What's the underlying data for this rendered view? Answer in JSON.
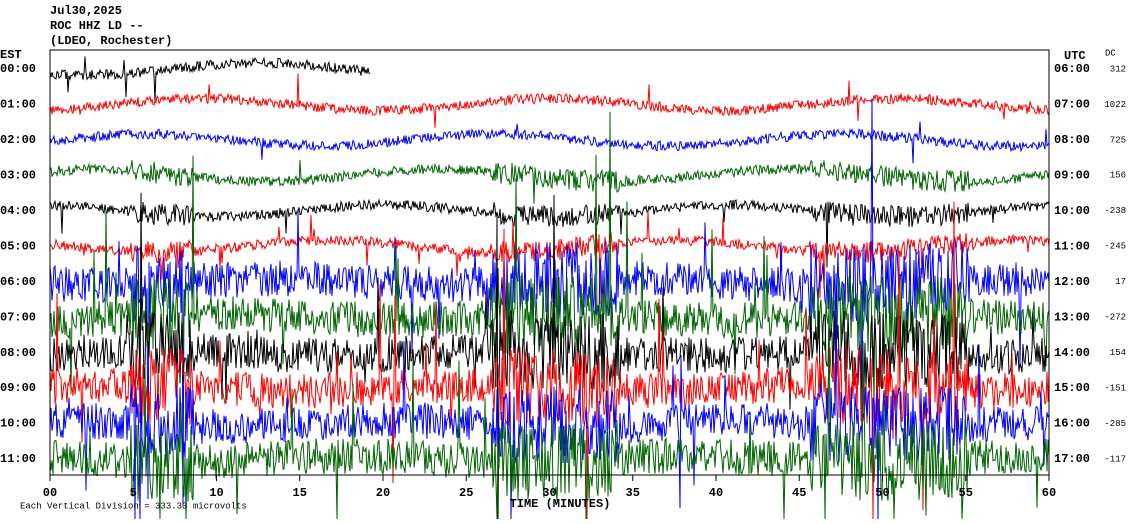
{
  "chart_data": {
    "type": "helicorder",
    "title_lines": [
      "Jul30,2025",
      "ROC HHZ LD --",
      "(LDEO, Rochester)"
    ],
    "left_axis_label": "EST",
    "right_axis_label": "UTC",
    "dc_label": "DC",
    "x_label": "TIME (MINUTES)",
    "footer": "Each Vertical Division = 333.33 microvolts",
    "xlim": [
      0,
      60
    ],
    "xticks": [
      {
        "value": 0,
        "label": "00"
      },
      5,
      10,
      15,
      20,
      25,
      30,
      35,
      40,
      45,
      50,
      55,
      60
    ],
    "rows": [
      {
        "est": "00:00",
        "utc": "06:00",
        "dc": "312",
        "color": "#000000"
      },
      {
        "est": "01:00",
        "utc": "07:00",
        "dc": "1022",
        "color": "#ff0000"
      },
      {
        "est": "02:00",
        "utc": "08:00",
        "dc": "725",
        "color": "#0000ff"
      },
      {
        "est": "03:00",
        "utc": "09:00",
        "dc": "156",
        "color": "#006400"
      },
      {
        "est": "04:00",
        "utc": "10:00",
        "dc": "-238",
        "color": "#000000"
      },
      {
        "est": "05:00",
        "utc": "11:00",
        "dc": "-245",
        "color": "#ff0000"
      },
      {
        "est": "06:00",
        "utc": "12:00",
        "dc": "17",
        "color": "#0000ff"
      },
      {
        "est": "07:00",
        "utc": "13:00",
        "dc": "-272",
        "color": "#006400"
      },
      {
        "est": "08:00",
        "utc": "14:00",
        "dc": "154",
        "color": "#000000"
      },
      {
        "est": "09:00",
        "utc": "15:00",
        "dc": "-151",
        "color": "#ff0000"
      },
      {
        "est": "10:00",
        "utc": "16:00",
        "dc": "-285",
        "color": "#0000ff"
      },
      {
        "est": "11:00",
        "utc": "17:00",
        "dc": "-117",
        "color": "#006400"
      }
    ]
  }
}
